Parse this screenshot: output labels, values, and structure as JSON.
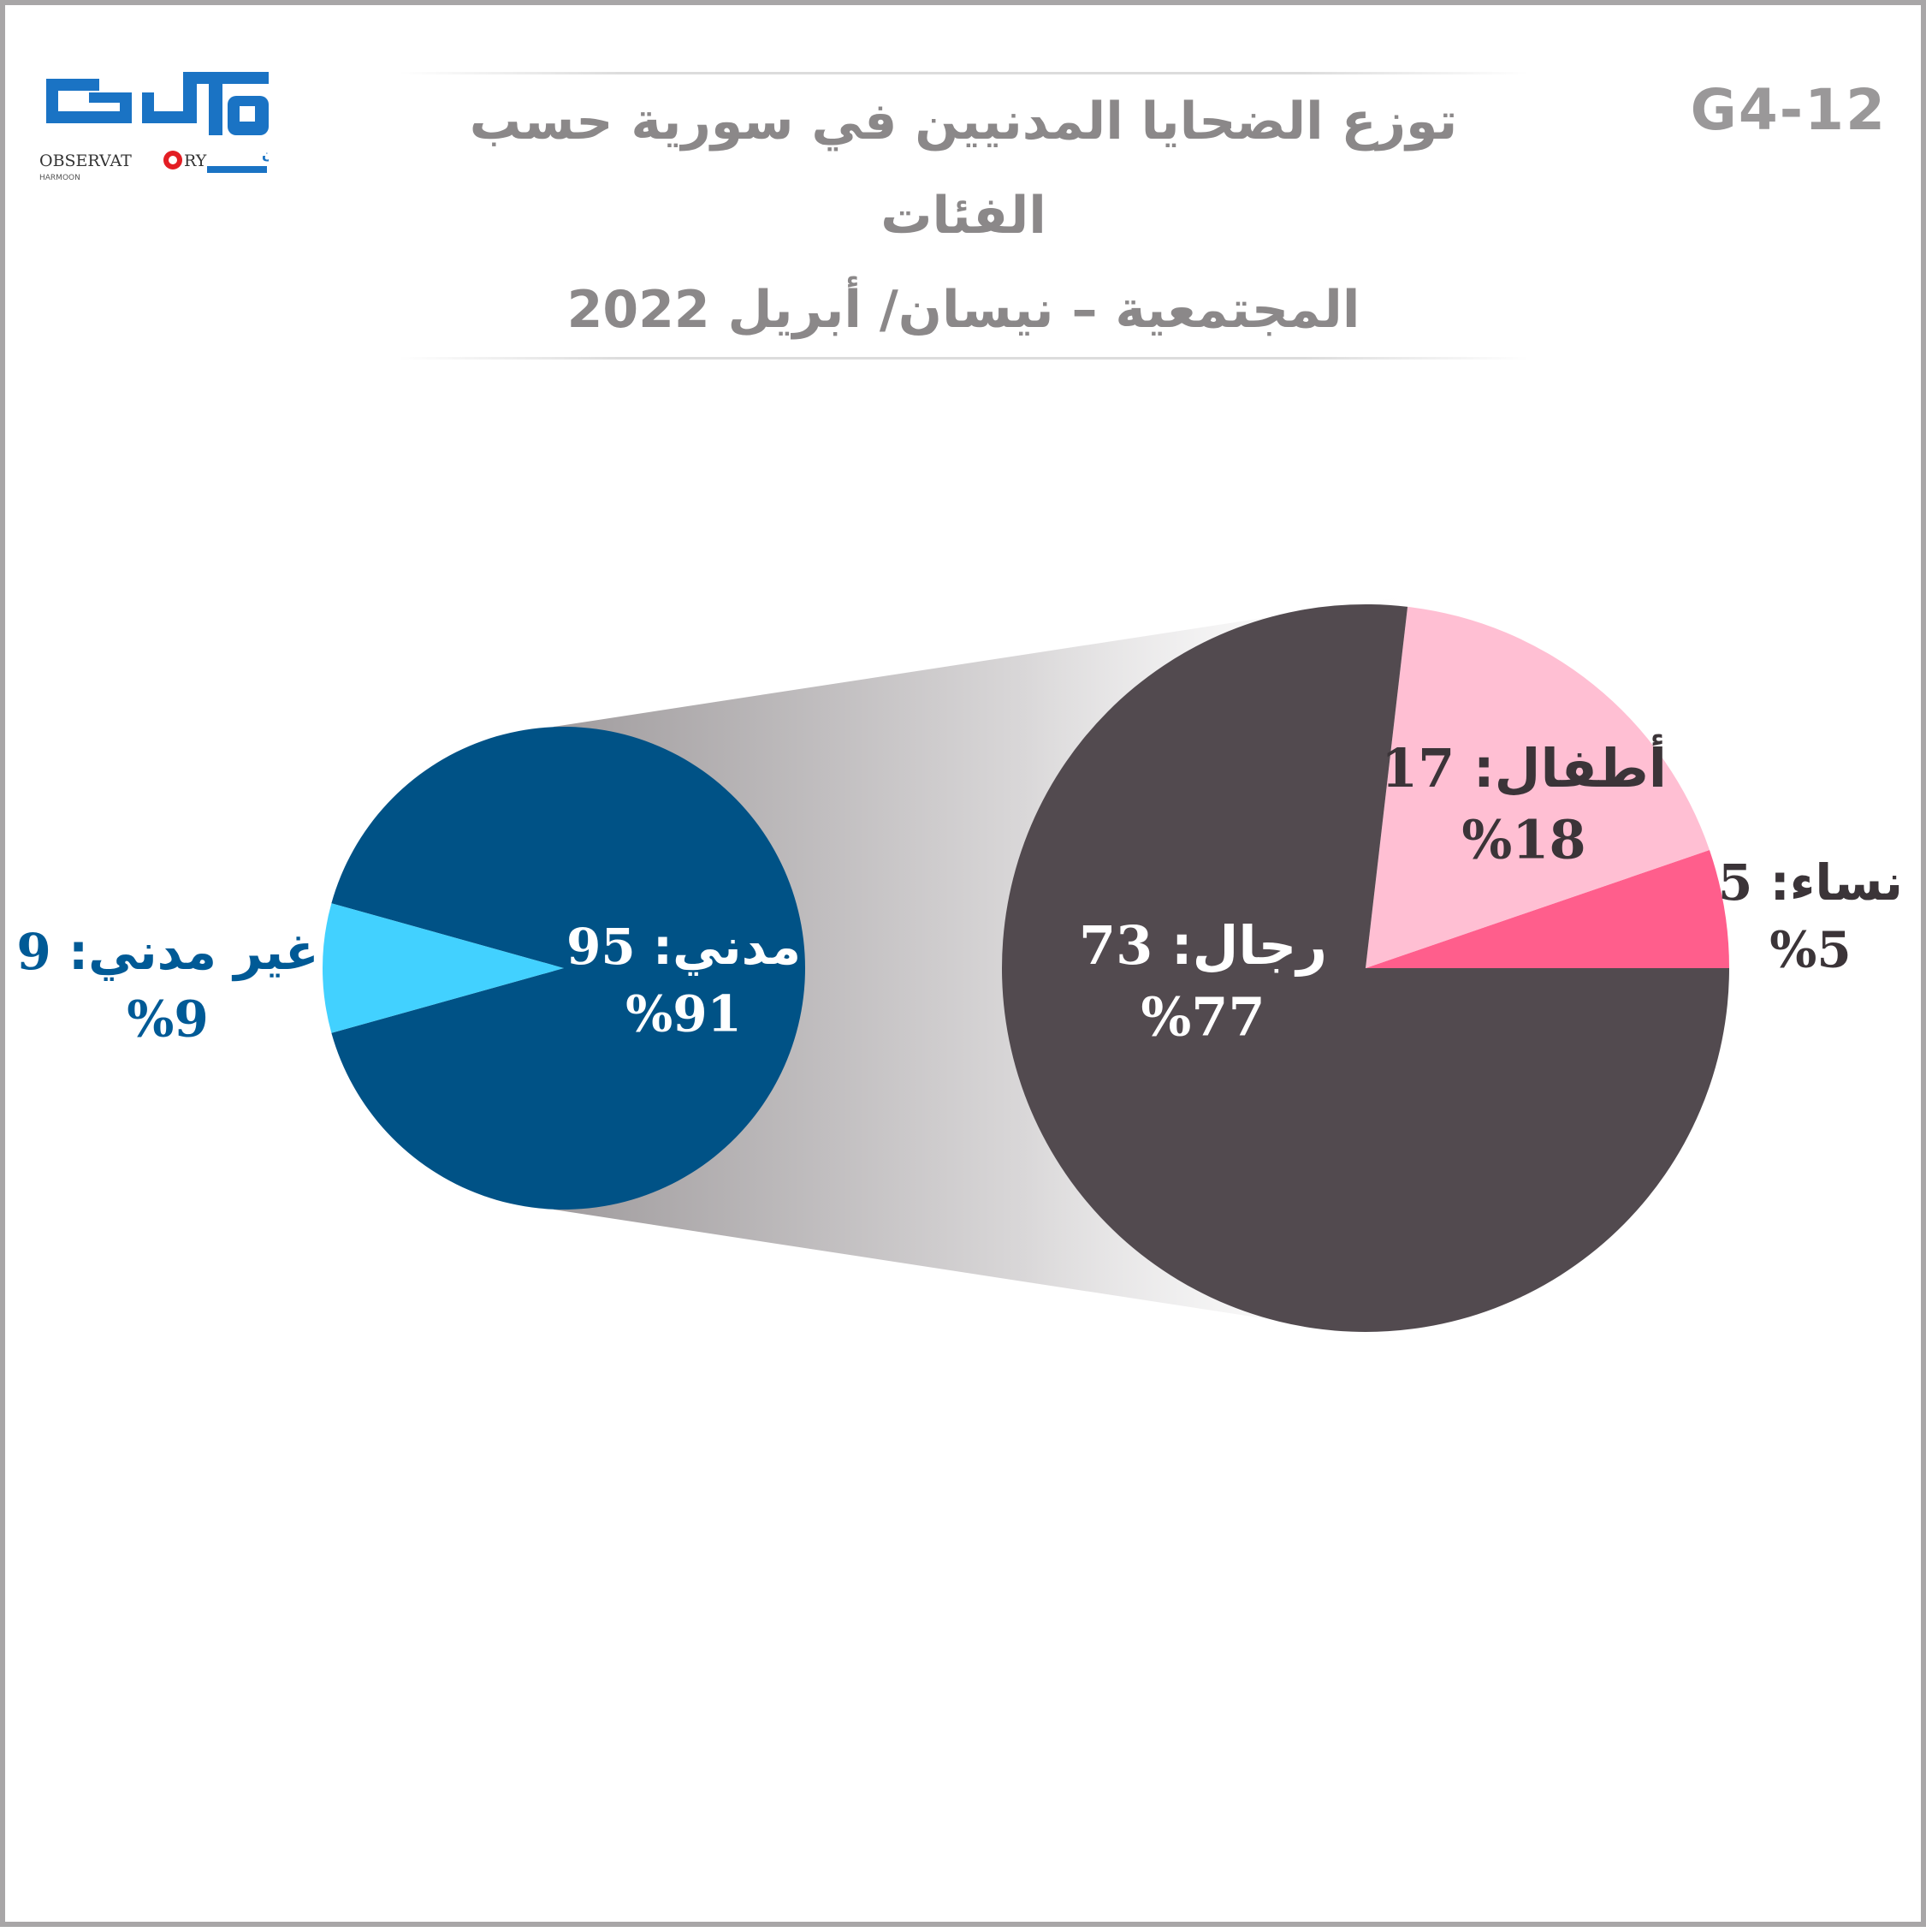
{
  "code": "G4-12",
  "logo": {
    "brand_arabic": "مرصد",
    "sub_arabic": "حرمون",
    "brand_latin_left": "OBSERVAT",
    "brand_latin_right": "RY",
    "brand_latin_small": "HARMOON",
    "colors": {
      "primary": "#1a73c4",
      "accent": "#e31e24"
    }
  },
  "header": {
    "title_line1": "توزع الضحايا المدنيين في سورية حسب الفئات",
    "title_line2": "المجتمعية –  نيسان/ أبريل 2022"
  },
  "chart_data": [
    {
      "type": "pie",
      "slices": [
        {
          "name": "مدني",
          "value": 95,
          "percent_label": "%91",
          "color": "#005286",
          "label_color": "#ffffff"
        },
        {
          "name": "غير مدني",
          "value": 9,
          "percent_label": "%9",
          "color": "#42d1ff",
          "label_color": "#005a96"
        }
      ]
    },
    {
      "type": "pie",
      "slices": [
        {
          "name": "رجال",
          "value": 73,
          "percent_label": "%77",
          "color": "#524a4f",
          "label_color": "#ffffff"
        },
        {
          "name": "أطفال",
          "value": 17,
          "percent_label": "%18",
          "color": "#ffbfd3",
          "label_color": "#3b3438"
        },
        {
          "name": "نساء",
          "value": 5,
          "percent_label": "%5",
          "color": "#ff5e8c",
          "label_color": "#3b3438"
        }
      ]
    }
  ]
}
